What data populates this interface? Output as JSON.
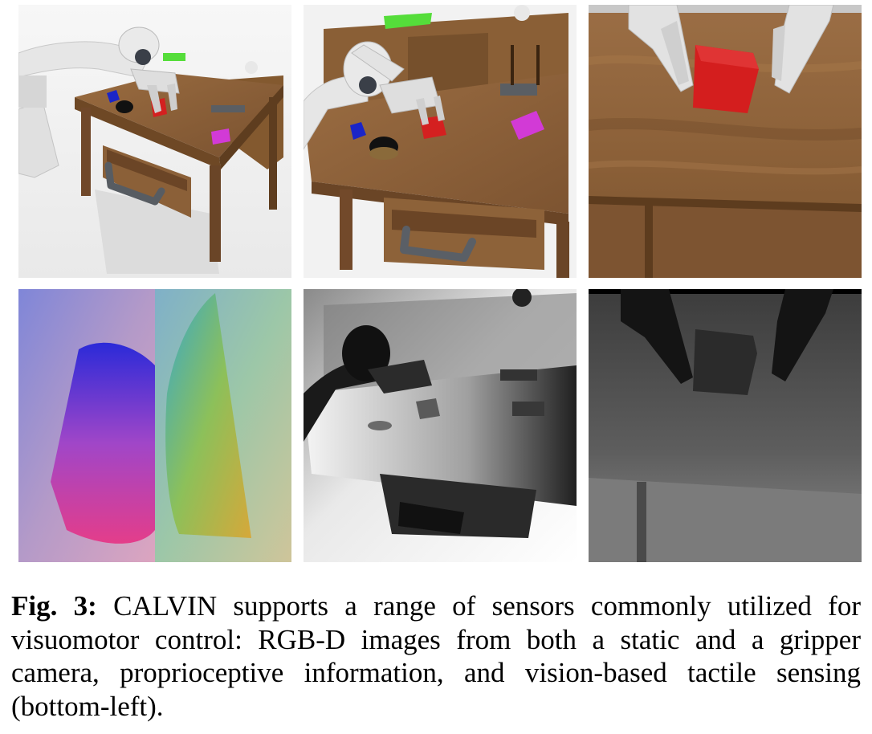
{
  "figure": {
    "panels": [
      {
        "row": "top",
        "col": "left",
        "view": "static camera",
        "modality": "RGB"
      },
      {
        "row": "top",
        "col": "middle",
        "view": "static camera",
        "modality": "RGB"
      },
      {
        "row": "top",
        "col": "right",
        "view": "gripper camera",
        "modality": "RGB"
      },
      {
        "row": "bottom",
        "col": "left",
        "view": "tactile sensor",
        "modality": "tactile"
      },
      {
        "row": "bottom",
        "col": "middle",
        "view": "static camera",
        "modality": "depth"
      },
      {
        "row": "bottom",
        "col": "right",
        "view": "gripper camera",
        "modality": "depth"
      }
    ],
    "colors": {
      "wood": "#8a5f36",
      "red_block": "#d42020",
      "blue_block": "#1a25c8",
      "pink_block": "#d23ad6",
      "green_button": "#55dd3a",
      "robot": "#e6e6e6",
      "handle": "#555a60"
    }
  },
  "caption": {
    "label": "Fig. 3:",
    "text": " CALVIN supports a range of sensors commonly utilized for visuomotor control: RGB-D images from both a static and a gripper camera, proprioceptive information, and vision-based tactile sensing (bottom-left)."
  }
}
